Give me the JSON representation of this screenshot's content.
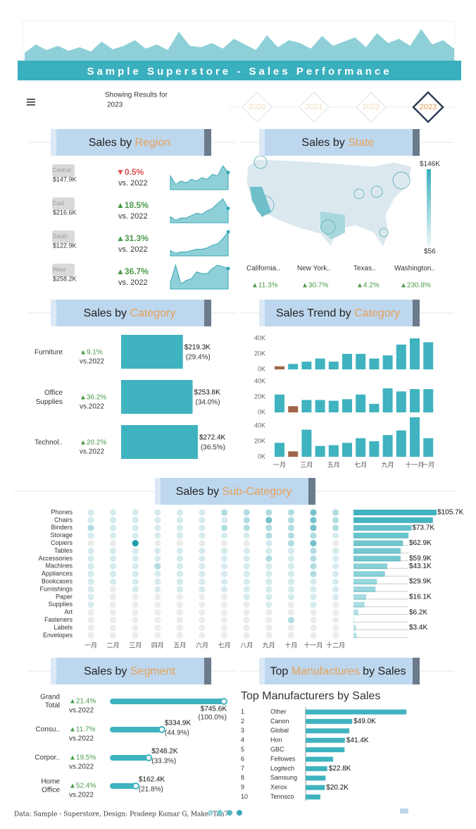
{
  "header": {
    "sparkline": [
      10,
      22,
      14,
      20,
      13,
      18,
      12,
      26,
      15,
      20,
      28,
      16,
      22,
      14,
      40,
      20,
      18,
      24,
      16,
      30,
      22,
      14,
      35,
      18,
      28,
      24,
      16,
      34,
      20,
      26,
      32,
      18,
      38,
      24,
      30,
      20,
      44,
      22,
      28,
      16
    ],
    "title": "Sample Superstore - Sales Performance",
    "showing": "Showing Results for",
    "year": "2023",
    "years": [
      "2020",
      "2021",
      "2022",
      "2023"
    ],
    "selected_year_index": 3
  },
  "region": {
    "heading": {
      "before": "Sales by ",
      "accent": "Region"
    },
    "rows": [
      {
        "name": "Central",
        "sales": "$147.9K",
        "change": "▼0.5%",
        "change_color": "#d9534f",
        "vs": "vs. 2022",
        "trend": [
          8,
          3,
          5,
          4,
          6,
          5,
          7,
          6,
          9,
          8,
          14,
          10
        ]
      },
      {
        "name": "East",
        "sales": "$216.6K",
        "change": "▲18.5%",
        "change_color": "#4a9a4a",
        "vs": "vs. 2022",
        "trend": [
          5,
          2,
          4,
          4,
          6,
          8,
          7,
          10,
          12,
          16,
          20,
          12
        ]
      },
      {
        "name": "South",
        "sales": "$122.9K",
        "change": "▲31.3%",
        "change_color": "#4a9a4a",
        "vs": "vs. 2022",
        "trend": [
          4,
          2,
          3,
          3,
          4,
          5,
          5,
          6,
          8,
          9,
          13,
          18
        ]
      },
      {
        "name": "West",
        "sales": "$258.2K",
        "change": "▲36.7%",
        "change_color": "#4a9a4a",
        "vs": "vs. 2022",
        "trend": [
          4,
          14,
          3,
          5,
          6,
          10,
          9,
          9,
          12,
          14,
          13,
          12
        ]
      }
    ]
  },
  "state": {
    "heading": {
      "before": "Sales by ",
      "accent": "State"
    },
    "legend_max": "$146K",
    "legend_min": "$56",
    "states": [
      {
        "name": "California..",
        "change": "▲11.3%"
      },
      {
        "name": "New York..",
        "change": "▲30.7%"
      },
      {
        "name": "Texas..",
        "change": "▲4.2%"
      },
      {
        "name": "Washington..",
        "change": "▲230.8%"
      }
    ]
  },
  "category": {
    "heading": {
      "before": "Sales by ",
      "accent": "Category"
    },
    "rows": [
      {
        "name_lines": [
          "Furniture"
        ],
        "change": "▲9.1%",
        "vs": "vs.2022",
        "sales": 219.3,
        "sales_label": "$219.3K",
        "share": "(29.4%)"
      },
      {
        "name_lines": [
          "Office",
          "Supplies"
        ],
        "change": "▲36.2%",
        "vs": "vs.2022",
        "sales": 253.8,
        "sales_label": "$253.8K",
        "share": "(34.0%)"
      },
      {
        "name_lines": [
          "Technol.."
        ],
        "change": "▲20.2%",
        "vs": "vs.2022",
        "sales": 272.4,
        "sales_label": "$272.4K",
        "share": "(36.5%)"
      }
    ]
  },
  "trend": {
    "heading": {
      "before": "Sales Trend by ",
      "accent": "Category"
    },
    "color": "#3fb3bf",
    "highlight_color": "#a0654a",
    "months": [
      "一月",
      null,
      "三月",
      null,
      "五月",
      null,
      "七月",
      null,
      "九月",
      null,
      "十一月",
      "一月"
    ],
    "yticks": [
      {
        "value": 0,
        "label": "0K"
      },
      {
        "value": 20,
        "label": "20K"
      },
      {
        "value": 40,
        "label": "40K"
      }
    ],
    "ylim": [
      0,
      40
    ],
    "panels": [
      {
        "values": [
          4,
          7,
          10,
          14,
          10,
          20,
          20,
          14,
          18,
          32,
          40,
          35
        ],
        "highlight_index": 0
      },
      {
        "values": [
          23,
          8,
          16,
          16,
          15,
          17,
          23,
          11,
          31,
          27,
          30,
          30
        ],
        "highlight_index": 1
      },
      {
        "values": [
          18,
          7,
          35,
          14,
          15,
          18,
          24,
          20,
          28,
          34,
          51,
          24
        ],
        "highlight_index": 1
      }
    ]
  },
  "subcategory": {
    "heading": {
      "before": "Sales by ",
      "accent": "Sub-Category"
    },
    "names": [
      "Phones",
      "Chairs",
      "Binders",
      "Storage",
      "Copiers",
      "Tables",
      "Accessories",
      "Machines",
      "Appliances",
      "Bookcases",
      "Furnishings",
      "Paper",
      "Supplies",
      "Art",
      "Fasteners",
      "Labels",
      "Envelopes"
    ],
    "months": [
      "一月",
      "二月",
      "三月",
      "四月",
      "五月",
      "六月",
      "七月",
      "八月",
      "九月",
      "十月",
      "十一月",
      "十二月"
    ],
    "intensity": [
      [
        1,
        1,
        1,
        1,
        1,
        1,
        2,
        2,
        2,
        2,
        3,
        2
      ],
      [
        1,
        1,
        1,
        1,
        1,
        1,
        1,
        2,
        3,
        2,
        3,
        2
      ],
      [
        2,
        1,
        1,
        1,
        1,
        1,
        2,
        2,
        2,
        2,
        3,
        2
      ],
      [
        1,
        1,
        1,
        1,
        1,
        1,
        1,
        1,
        2,
        2,
        2,
        1
      ],
      [
        0,
        0,
        4,
        0,
        0,
        0,
        0,
        0,
        1,
        2,
        3,
        0
      ],
      [
        1,
        1,
        1,
        1,
        1,
        1,
        1,
        1,
        1,
        1,
        2,
        1
      ],
      [
        1,
        1,
        1,
        1,
        1,
        1,
        1,
        1,
        2,
        1,
        2,
        1
      ],
      [
        1,
        1,
        1,
        2,
        1,
        1,
        1,
        1,
        1,
        1,
        2,
        1
      ],
      [
        1,
        1,
        1,
        1,
        1,
        1,
        1,
        1,
        1,
        1,
        2,
        1
      ],
      [
        1,
        1,
        1,
        1,
        1,
        1,
        1,
        1,
        1,
        1,
        1,
        1
      ],
      [
        1,
        0,
        1,
        1,
        1,
        1,
        1,
        1,
        1,
        1,
        1,
        1
      ],
      [
        1,
        0,
        0,
        0,
        0,
        0,
        0,
        1,
        1,
        1,
        1,
        1
      ],
      [
        1,
        0,
        0,
        0,
        0,
        0,
        0,
        0,
        1,
        0,
        1,
        0
      ],
      [
        0,
        0,
        0,
        0,
        0,
        0,
        0,
        0,
        0,
        0,
        0,
        0
      ],
      [
        0,
        0,
        0,
        0,
        0,
        0,
        0,
        0,
        0,
        2,
        0,
        0
      ],
      [
        0,
        0,
        0,
        0,
        0,
        0,
        0,
        0,
        0,
        0,
        0,
        0
      ],
      [
        0,
        0,
        0,
        0,
        0,
        0,
        0,
        0,
        0,
        0,
        0,
        0
      ]
    ],
    "sales": [
      105.7,
      101,
      73.7,
      70,
      62.9,
      60,
      59.9,
      43.1,
      40,
      29.9,
      28,
      16.1,
      14,
      6.2,
      1,
      3.4,
      4
    ],
    "sales_labels": [
      "$105.7K",
      null,
      "$73.7K",
      null,
      "$62.9K",
      null,
      "$59.9K",
      "$43.1K",
      null,
      "$29.9K",
      null,
      "$16.1K",
      null,
      "$6.2K",
      null,
      "$3.4K",
      null
    ]
  },
  "segment": {
    "heading": {
      "before": "Sales by ",
      "accent": "Segment"
    },
    "rows": [
      {
        "name_lines": [
          "Grand",
          "Total"
        ],
        "change": "▲21.4%",
        "vs": "vs.2022",
        "sales": 745.6,
        "sales_label": "$745.6K",
        "share": "(100.0%)"
      },
      {
        "name_lines": [
          "Consu.."
        ],
        "change": "▲11.7%",
        "vs": "vs.2022",
        "sales": 334.9,
        "sales_label": "$334.9K",
        "share": "(44.9%)"
      },
      {
        "name_lines": [
          "Corpor.."
        ],
        "change": "▲19.5%",
        "vs": "vs.2022",
        "sales": 248.2,
        "sales_label": "$248.2K",
        "share": "(33.3%)"
      },
      {
        "name_lines": [
          "Home",
          "Office"
        ],
        "change": "▲52.4%",
        "vs": "vs.2022",
        "sales": 162.4,
        "sales_label": "$162.4K",
        "share": "(21.8%)"
      }
    ]
  },
  "manufacturers": {
    "heading": {
      "before": "Top ",
      "accent": "Manufactures",
      "after": " by Sales"
    },
    "title": "Top Manufacturers by Sales",
    "ranks": [
      "1",
      "2",
      "3",
      "4",
      "5",
      "6",
      "7",
      "8",
      "9",
      "10"
    ],
    "names": [
      "Other",
      "Canon",
      "Global",
      "Hon",
      "GBC",
      "Fellowes",
      "Logitech",
      "Samsung",
      "Xerox",
      "Tennsco"
    ],
    "sales": [
      106,
      49.0,
      46,
      41.4,
      41,
      29,
      22.8,
      21,
      20.2,
      15.5
    ],
    "sales_labels": [
      null,
      "$49.0K",
      null,
      "$41.4K",
      null,
      null,
      "$22.8K",
      null,
      "$20.2K",
      null
    ]
  },
  "footer": "Data: Sample - Superstore, Design: Pradeep Kumar G, Make: Tan7"
}
